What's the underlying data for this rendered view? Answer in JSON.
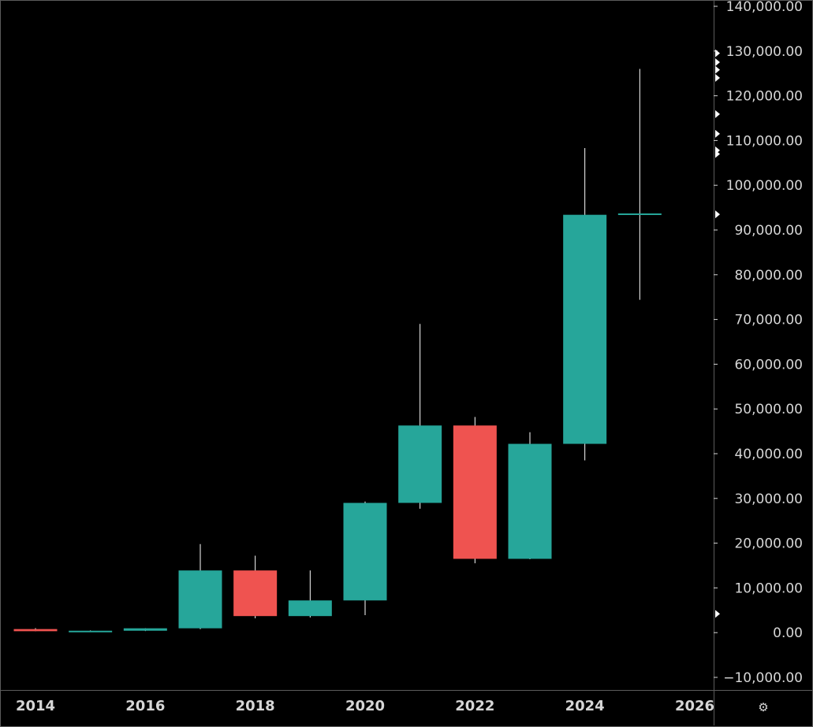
{
  "chart_data": {
    "type": "candlestick",
    "x_tick_labels": [
      "2014",
      "2016",
      "2018",
      "2020",
      "2022",
      "2024",
      "2026"
    ],
    "x_ticks": [
      2014,
      2016,
      2018,
      2020,
      2022,
      2024,
      2026
    ],
    "y_tick_labels": [
      "140,000.00",
      "130,000.00",
      "120,000.00",
      "110,000.00",
      "100,000.00",
      "90,000.00",
      "80,000.00",
      "70,000.00",
      "60,000.00",
      "50,000.00",
      "40,000.00",
      "30,000.00",
      "20,000.00",
      "10,000.00",
      "0.00",
      "−10,000.00"
    ],
    "y_ticks": [
      140000,
      130000,
      120000,
      110000,
      100000,
      90000,
      80000,
      70000,
      60000,
      50000,
      40000,
      30000,
      20000,
      10000,
      0,
      -10000
    ],
    "ylim": [
      -12000,
      142000
    ],
    "xlim": [
      2013.55,
      2026.35
    ],
    "candles": [
      {
        "year": 2014,
        "open": 800,
        "high": 1000,
        "low": 300,
        "close": 320
      },
      {
        "year": 2015,
        "open": 320,
        "high": 500,
        "low": 170,
        "close": 430
      },
      {
        "year": 2016,
        "open": 430,
        "high": 980,
        "low": 360,
        "close": 970
      },
      {
        "year": 2017,
        "open": 970,
        "high": 19800,
        "low": 780,
        "close": 13900
      },
      {
        "year": 2018,
        "open": 13900,
        "high": 17200,
        "low": 3200,
        "close": 3700
      },
      {
        "year": 2019,
        "open": 3700,
        "high": 13900,
        "low": 3400,
        "close": 7200
      },
      {
        "year": 2020,
        "open": 7200,
        "high": 29300,
        "low": 3900,
        "close": 29000
      },
      {
        "year": 2021,
        "open": 29000,
        "high": 69000,
        "low": 27700,
        "close": 46300
      },
      {
        "year": 2022,
        "open": 46300,
        "high": 48200,
        "low": 15500,
        "close": 16500
      },
      {
        "year": 2023,
        "open": 16500,
        "high": 44800,
        "low": 16400,
        "close": 42200
      },
      {
        "year": 2024,
        "open": 42200,
        "high": 108300,
        "low": 38500,
        "close": 93400
      },
      {
        "year": 2025,
        "open": 93400,
        "high": 126000,
        "low": 74400,
        "close": 93700
      }
    ],
    "price_markers": [
      129500,
      127500,
      125800,
      124000,
      115900,
      111500,
      107800,
      107000,
      93500,
      4200
    ],
    "colors": {
      "up": "#26a69a",
      "down": "#ef5350",
      "wick": "#ffffff",
      "text": "#d6d6d6",
      "grid_line": "#5b5b5b",
      "background": "#000000"
    }
  },
  "settings_icon": "gear-icon",
  "settings_glyph": "⚙"
}
